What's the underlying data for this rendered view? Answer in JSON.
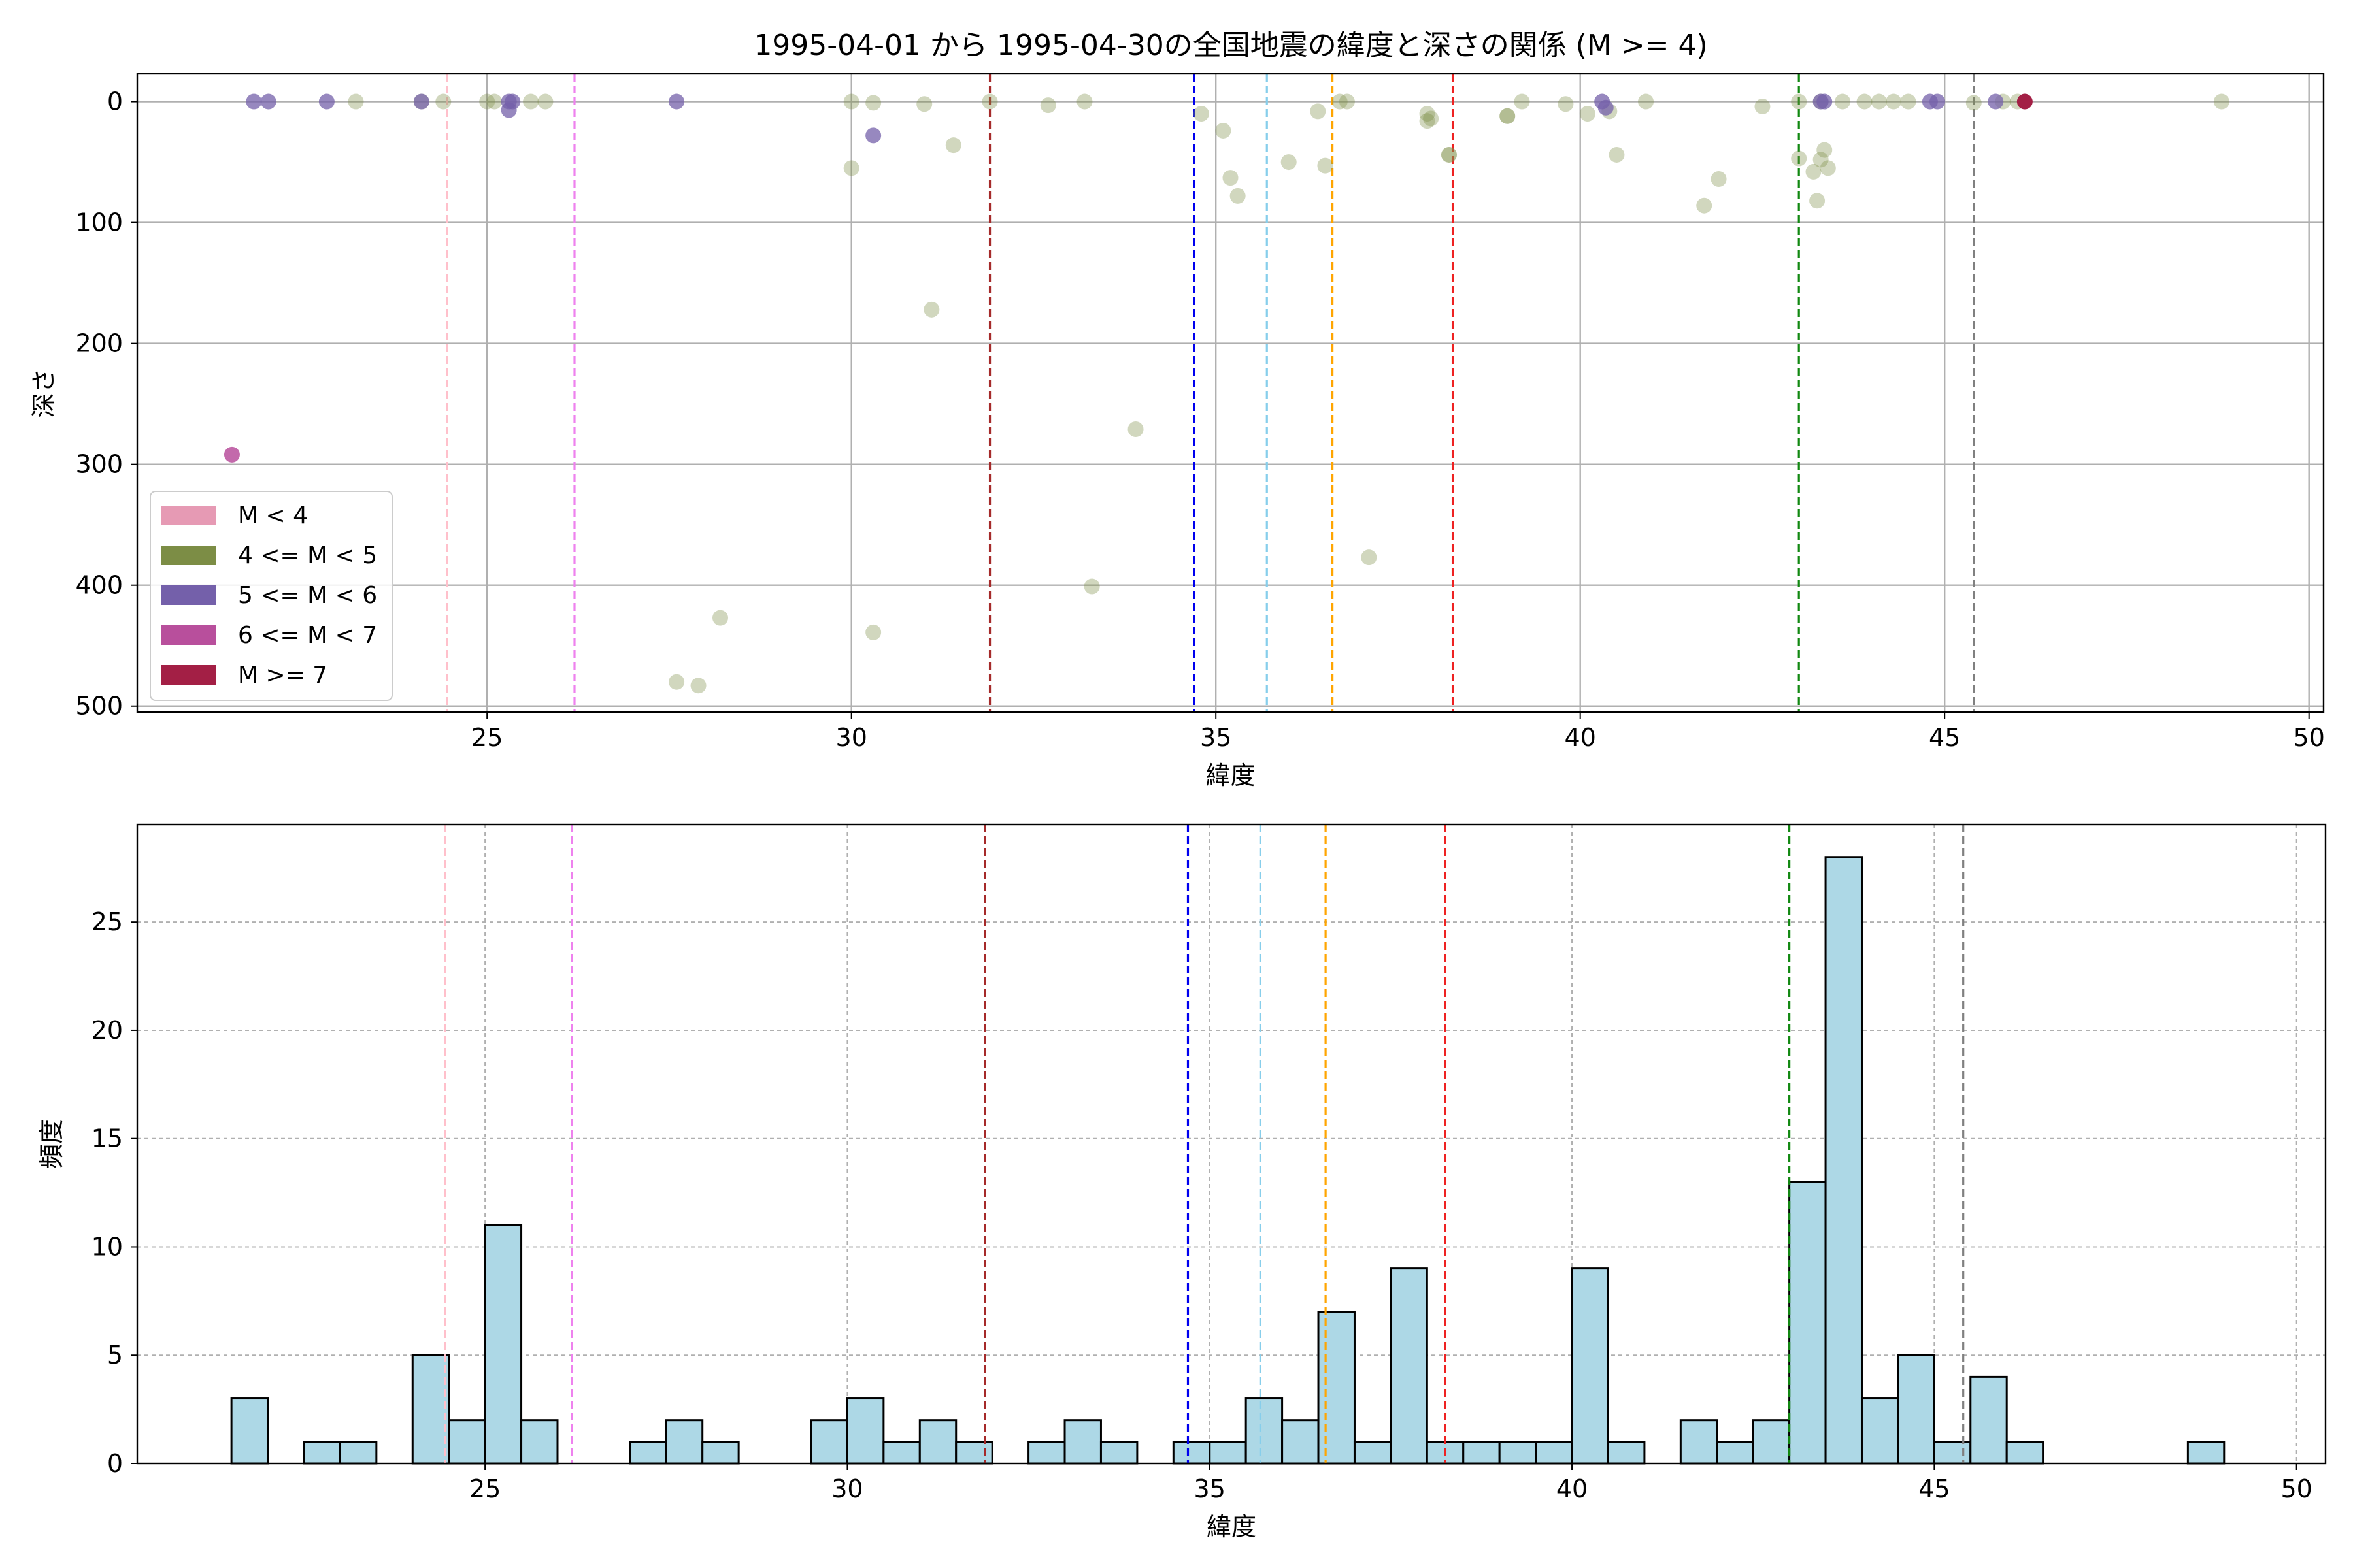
{
  "chart_data": [
    {
      "type": "scatter",
      "title": "1995-04-01 から 1995-04-30の全国地震の緯度と深さの関係 (M >= 4)",
      "xlabel": "緯度",
      "ylabel": "深さ",
      "xlim": [
        20.2,
        50.2
      ],
      "ylim": [
        505,
        -23
      ],
      "y_inverted": true,
      "grid": true,
      "xticks": [
        "25",
        "30",
        "35",
        "40",
        "45",
        "50"
      ],
      "yticks": [
        "0",
        "100",
        "200",
        "300",
        "400",
        "500"
      ],
      "legend": {
        "placement": "lower-left",
        "entries": [
          {
            "label": "M < 4",
            "color": "#e69ab4"
          },
          {
            "label": "4 <= M < 5",
            "color": "#7c8d45"
          },
          {
            "label": "5 <= M < 6",
            "color": "#7460aa"
          },
          {
            "label": "6 <= M < 7",
            "color": "#b84f9c"
          },
          {
            "label": "M >= 7",
            "color": "#a31f45"
          }
        ]
      },
      "reference_lines": [
        {
          "x": 24.45,
          "color": "#ffc0cb"
        },
        {
          "x": 26.2,
          "color": "#ee82ee"
        },
        {
          "x": 31.9,
          "color": "#a52a2a"
        },
        {
          "x": 34.7,
          "color": "#0000ee"
        },
        {
          "x": 35.7,
          "color": "#87ceeb"
        },
        {
          "x": 36.6,
          "color": "#ffa500"
        },
        {
          "x": 38.25,
          "color": "#ee2222"
        },
        {
          "x": 43.0,
          "color": "#118811"
        },
        {
          "x": 45.4,
          "color": "#808080"
        }
      ],
      "series": [
        {
          "category": "4 <= M < 5",
          "color": "#7c8d45",
          "alpha": 0.35,
          "x": [
            23.2,
            24.1,
            24.4,
            25.0,
            25.1,
            25.6,
            25.8,
            30.0,
            30.3,
            31.0,
            31.9,
            32.7,
            33.2,
            34.8,
            35.1,
            36.4,
            36.7,
            36.8,
            37.9,
            37.95,
            37.9,
            38.2,
            39.0,
            39.2,
            39.8,
            40.1,
            40.5,
            40.9,
            42.5,
            43.0,
            43.3,
            43.6,
            43.9,
            44.1,
            44.3,
            44.5,
            45.4,
            45.8,
            46.0,
            48.8,
            30.0,
            31.4,
            35.2,
            35.3,
            36.0,
            36.5,
            38.2,
            39.0,
            40.4,
            41.7,
            41.9,
            43.0,
            43.2,
            43.3,
            43.35,
            43.4,
            43.25,
            31.1,
            33.9,
            37.1,
            33.3,
            30.3,
            28.2,
            27.6,
            27.9
          ],
          "y": [
            0,
            0,
            0,
            0,
            0,
            0,
            0,
            0,
            1,
            2,
            0,
            3,
            0,
            10,
            24,
            8,
            0,
            0,
            10,
            14,
            16,
            44,
            12,
            0,
            2,
            10,
            44,
            0,
            4,
            0,
            0,
            0,
            0,
            0,
            0,
            0,
            1,
            0,
            0,
            0,
            55,
            36,
            63,
            78,
            50,
            53,
            44,
            12,
            8,
            86,
            64,
            47,
            58,
            48,
            40,
            55,
            82,
            172,
            271,
            377,
            401,
            439,
            427,
            480,
            483
          ]
        },
        {
          "category": "5 <= M < 6",
          "color": "#7460aa",
          "alpha": 0.75,
          "x": [
            21.8,
            22.0,
            22.8,
            24.1,
            25.3,
            25.35,
            25.3,
            27.6,
            30.3,
            40.3,
            40.35,
            43.3,
            43.35,
            44.8,
            44.9,
            45.7
          ],
          "y": [
            0,
            0,
            0,
            0,
            0,
            0,
            7,
            0,
            28,
            0,
            5,
            0,
            0,
            0,
            0,
            0
          ]
        },
        {
          "category": "6 <= M < 7",
          "color": "#b84f9c",
          "alpha": 0.85,
          "x": [
            21.5
          ],
          "y": [
            292
          ]
        },
        {
          "category": "M >= 7",
          "color": "#a31f45",
          "alpha": 1.0,
          "x": [
            46.1
          ],
          "y": [
            0
          ]
        }
      ]
    },
    {
      "type": "bar",
      "title": "",
      "xlabel": "緯度",
      "ylabel": "頻度",
      "xlim": [
        20.2,
        50.4
      ],
      "ylim": [
        0,
        29.5
      ],
      "grid": true,
      "bar_color": "#add8e6",
      "xticks": [
        "25",
        "30",
        "35",
        "40",
        "45",
        "50"
      ],
      "yticks": [
        "0",
        "5",
        "10",
        "15",
        "20",
        "25"
      ],
      "bin_width": 0.5,
      "bins": [
        {
          "x0": 21.5,
          "count": 3
        },
        {
          "x0": 22.5,
          "count": 1
        },
        {
          "x0": 23.0,
          "count": 1
        },
        {
          "x0": 24.0,
          "count": 5
        },
        {
          "x0": 24.5,
          "count": 2
        },
        {
          "x0": 25.0,
          "count": 11
        },
        {
          "x0": 25.5,
          "count": 2
        },
        {
          "x0": 27.0,
          "count": 1
        },
        {
          "x0": 27.5,
          "count": 2
        },
        {
          "x0": 28.0,
          "count": 1
        },
        {
          "x0": 29.5,
          "count": 2
        },
        {
          "x0": 30.0,
          "count": 3
        },
        {
          "x0": 30.5,
          "count": 1
        },
        {
          "x0": 31.0,
          "count": 2
        },
        {
          "x0": 31.5,
          "count": 1
        },
        {
          "x0": 32.5,
          "count": 1
        },
        {
          "x0": 33.0,
          "count": 2
        },
        {
          "x0": 33.5,
          "count": 1
        },
        {
          "x0": 34.5,
          "count": 1
        },
        {
          "x0": 35.0,
          "count": 1
        },
        {
          "x0": 35.5,
          "count": 3
        },
        {
          "x0": 36.0,
          "count": 2
        },
        {
          "x0": 36.5,
          "count": 7
        },
        {
          "x0": 37.0,
          "count": 1
        },
        {
          "x0": 37.5,
          "count": 9
        },
        {
          "x0": 38.0,
          "count": 1
        },
        {
          "x0": 38.5,
          "count": 1
        },
        {
          "x0": 39.0,
          "count": 1
        },
        {
          "x0": 39.5,
          "count": 1
        },
        {
          "x0": 40.0,
          "count": 9
        },
        {
          "x0": 40.5,
          "count": 1
        },
        {
          "x0": 41.5,
          "count": 2
        },
        {
          "x0": 42.0,
          "count": 1
        },
        {
          "x0": 42.5,
          "count": 2
        },
        {
          "x0": 43.0,
          "count": 13
        },
        {
          "x0": 43.5,
          "count": 28
        },
        {
          "x0": 44.0,
          "count": 3
        },
        {
          "x0": 44.5,
          "count": 5
        },
        {
          "x0": 45.0,
          "count": 1
        },
        {
          "x0": 45.5,
          "count": 4
        },
        {
          "x0": 46.0,
          "count": 1
        },
        {
          "x0": 48.5,
          "count": 1
        }
      ],
      "reference_lines": [
        {
          "x": 24.45,
          "color": "#ffc0cb"
        },
        {
          "x": 26.2,
          "color": "#ee82ee"
        },
        {
          "x": 31.9,
          "color": "#a52a2a"
        },
        {
          "x": 34.7,
          "color": "#0000ee"
        },
        {
          "x": 35.7,
          "color": "#87ceeb"
        },
        {
          "x": 36.6,
          "color": "#ffa500"
        },
        {
          "x": 38.25,
          "color": "#ee2222"
        },
        {
          "x": 43.0,
          "color": "#118811"
        },
        {
          "x": 45.4,
          "color": "#808080"
        }
      ]
    }
  ]
}
